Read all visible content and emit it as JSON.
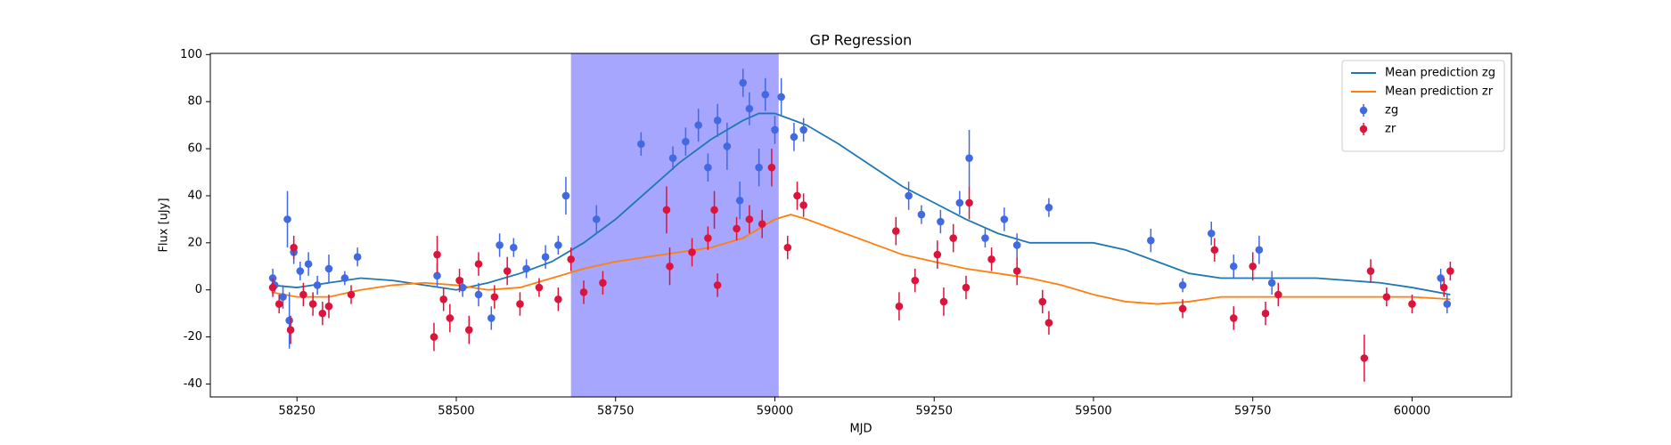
{
  "chart_data": {
    "type": "errorbar",
    "title": "GP Regression",
    "x_label": "MJD",
    "y_label": "Flux [uJy]",
    "xlim": [
      58114,
      60156
    ],
    "ylim": [
      -45.5,
      100.5
    ],
    "xticks": [
      58250,
      58500,
      58750,
      59000,
      59250,
      59500,
      59750,
      60000
    ],
    "yticks": [
      -40,
      -20,
      0,
      20,
      40,
      60,
      80,
      100
    ],
    "legend": "upper right",
    "shaded_region": {
      "x": [
        58680,
        59006
      ],
      "color": "#0000ff",
      "opacity": 0.35
    },
    "series": [
      {
        "name": "Mean prediction zg",
        "type": "line",
        "color": "#1f77b4",
        "x": [
          58210,
          58250,
          58300,
          58350,
          58400,
          58450,
          58500,
          58550,
          58600,
          58650,
          58700,
          58750,
          58800,
          58850,
          58900,
          58950,
          58975,
          59000,
          59050,
          59100,
          59150,
          59200,
          59250,
          59300,
          59350,
          59400,
          59450,
          59500,
          59550,
          59600,
          59650,
          59700,
          59750,
          59800,
          59850,
          59900,
          59950,
          60000,
          60060
        ],
        "values": [
          2,
          1,
          3,
          5,
          4,
          2,
          0,
          3,
          7,
          12,
          20,
          30,
          42,
          54,
          64,
          72,
          75,
          75,
          70,
          62,
          53,
          44,
          37,
          30,
          24,
          20,
          20,
          20,
          17,
          12,
          7,
          5,
          5,
          5,
          5,
          4,
          3,
          1,
          -2
        ]
      },
      {
        "name": "Mean prediction zr",
        "type": "line",
        "color": "#ff7f0e",
        "x": [
          58210,
          58250,
          58300,
          58350,
          58400,
          58450,
          58500,
          58550,
          58600,
          58650,
          58700,
          58750,
          58800,
          58850,
          58900,
          58950,
          59000,
          59025,
          59050,
          59100,
          59150,
          59200,
          59250,
          59300,
          59350,
          59400,
          59450,
          59500,
          59550,
          59600,
          59650,
          59700,
          59750,
          59800,
          59850,
          59900,
          59950,
          60000,
          60060
        ],
        "values": [
          -1,
          -3,
          -3,
          0,
          2,
          3,
          2,
          0,
          1,
          5,
          9,
          12,
          14,
          16,
          18,
          22,
          30,
          32,
          30,
          25,
          20,
          15,
          12,
          9,
          7,
          5,
          2,
          -2,
          -5,
          -6,
          -5,
          -3,
          -3,
          -3,
          -3,
          -3,
          -3,
          -3,
          -4
        ]
      },
      {
        "name": "zg",
        "type": "errorbar",
        "color": "#4169e1",
        "x": [
          58212,
          58215,
          58228,
          58235,
          58238,
          58245,
          58255,
          58268,
          58282,
          58300,
          58325,
          58345,
          58470,
          58510,
          58535,
          58555,
          58568,
          58590,
          58610,
          58640,
          58660,
          58672,
          58720,
          58790,
          58840,
          58860,
          58880,
          58895,
          58910,
          58925,
          58945,
          58950,
          58960,
          58975,
          58985,
          59000,
          59010,
          59030,
          59045,
          59210,
          59230,
          59260,
          59290,
          59305,
          59330,
          59360,
          59380,
          59430,
          59590,
          59640,
          59685,
          59720,
          59760,
          59780,
          60045,
          60055
        ],
        "values": [
          5,
          2,
          -3,
          30,
          -13,
          16,
          8,
          11,
          2,
          9,
          5,
          14,
          6,
          1,
          -2,
          -12,
          19,
          18,
          9,
          14,
          19,
          40,
          30,
          62,
          56,
          63,
          70,
          52,
          72,
          61,
          38,
          88,
          77,
          52,
          83,
          68,
          82,
          65,
          68,
          40,
          32,
          29,
          37,
          56,
          22,
          30,
          19,
          35,
          21,
          2,
          24,
          10,
          17,
          3,
          5,
          -6
        ],
        "errors": [
          4,
          3,
          5,
          12,
          12,
          5,
          4,
          5,
          4,
          6,
          3,
          4,
          5,
          4,
          5,
          5,
          5,
          4,
          4,
          5,
          4,
          8,
          6,
          5,
          5,
          6,
          7,
          6,
          7,
          10,
          8,
          6,
          7,
          8,
          7,
          6,
          8,
          6,
          5,
          6,
          4,
          5,
          5,
          12,
          4,
          5,
          5,
          4,
          5,
          3,
          5,
          5,
          6,
          5,
          4,
          4
        ]
      },
      {
        "name": "zr",
        "type": "errorbar",
        "color": "#dc143c",
        "x": [
          58212,
          58222,
          58240,
          58245,
          58260,
          58275,
          58290,
          58300,
          58335,
          58465,
          58470,
          58480,
          58490,
          58505,
          58520,
          58535,
          58560,
          58580,
          58600,
          58630,
          58660,
          58680,
          58700,
          58730,
          58830,
          58835,
          58870,
          58895,
          58905,
          58910,
          58940,
          58960,
          58980,
          58995,
          59020,
          59035,
          59045,
          59190,
          59195,
          59220,
          59255,
          59265,
          59280,
          59300,
          59305,
          59340,
          59380,
          59420,
          59430,
          59640,
          59690,
          59720,
          59750,
          59770,
          59790,
          59925,
          59935,
          59960,
          60000,
          60050,
          60060
        ],
        "values": [
          1,
          -6,
          -17,
          18,
          -2,
          -6,
          -10,
          -7,
          -2,
          -20,
          15,
          -4,
          -12,
          4,
          -17,
          11,
          -3,
          8,
          -6,
          1,
          -4,
          13,
          -1,
          3,
          34,
          10,
          16,
          22,
          34,
          2,
          26,
          30,
          28,
          52,
          18,
          40,
          36,
          25,
          -7,
          4,
          15,
          -5,
          22,
          1,
          37,
          13,
          8,
          -5,
          -14,
          -8,
          17,
          -12,
          10,
          -10,
          -2,
          -29,
          8,
          -3,
          -6,
          1,
          8
        ],
        "errors": [
          4,
          4,
          6,
          5,
          5,
          5,
          5,
          5,
          4,
          6,
          8,
          5,
          6,
          5,
          6,
          5,
          5,
          6,
          5,
          4,
          5,
          5,
          5,
          5,
          10,
          8,
          6,
          5,
          8,
          5,
          5,
          6,
          6,
          8,
          5,
          6,
          5,
          6,
          6,
          5,
          6,
          6,
          6,
          5,
          7,
          5,
          6,
          5,
          5,
          4,
          5,
          5,
          6,
          5,
          5,
          10,
          5,
          4,
          4,
          4,
          4
        ]
      }
    ]
  }
}
